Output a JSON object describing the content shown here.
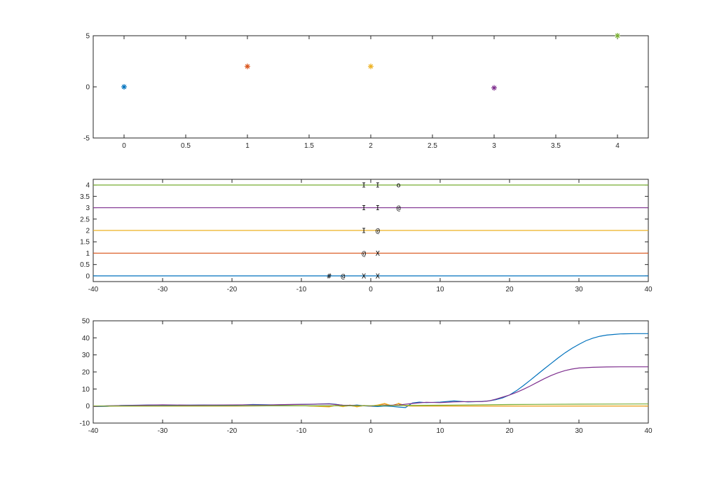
{
  "colors": {
    "blue": "#0072bd",
    "orange": "#d95319",
    "yellow": "#edb120",
    "purple": "#7e2f8e",
    "green": "#77ac30",
    "axis": "#262626"
  },
  "chart_data": [
    {
      "type": "scatter",
      "marker": "*",
      "xlim": [
        -0.25,
        4.25
      ],
      "ylim": [
        -5,
        5
      ],
      "xticks": [
        "0",
        "0.5",
        "1",
        "1.5",
        "2",
        "2.5",
        "3",
        "3.5",
        "4"
      ],
      "yticks": [
        "-5",
        "0",
        "5"
      ],
      "points": [
        {
          "x": 0,
          "y": 0,
          "color": "#0072bd"
        },
        {
          "x": 1,
          "y": 2,
          "color": "#d95319"
        },
        {
          "x": 2,
          "y": 2,
          "color": "#edb120"
        },
        {
          "x": 3,
          "y": -0.1,
          "color": "#7e2f8e"
        },
        {
          "x": 4,
          "y": 5,
          "color": "#77ac30"
        }
      ]
    },
    {
      "type": "line",
      "xlim": [
        -40,
        40
      ],
      "ylim": [
        -0.25,
        4.25
      ],
      "xticks": [
        "-40",
        "-30",
        "-20",
        "-10",
        "0",
        "10",
        "20",
        "30",
        "40"
      ],
      "yticks": [
        "0",
        "0.5",
        "1",
        "1.5",
        "2",
        "2.5",
        "3",
        "3.5",
        "4"
      ],
      "series": [
        {
          "y": 0,
          "color": "#0072bd"
        },
        {
          "y": 1,
          "color": "#d95319"
        },
        {
          "y": 2,
          "color": "#edb120"
        },
        {
          "y": 3,
          "color": "#7e2f8e"
        },
        {
          "y": 4,
          "color": "#77ac30"
        }
      ],
      "annotations": [
        {
          "text": "#",
          "x": -6,
          "y": 0
        },
        {
          "text": "@",
          "x": -4,
          "y": 0
        },
        {
          "text": "X",
          "x": -1,
          "y": 0
        },
        {
          "text": "X",
          "x": 1,
          "y": 0
        },
        {
          "text": "@",
          "x": -1,
          "y": 1
        },
        {
          "text": "X",
          "x": 1,
          "y": 1
        },
        {
          "text": "I",
          "x": -1,
          "y": 2
        },
        {
          "text": "@",
          "x": 1,
          "y": 2
        },
        {
          "text": "I",
          "x": -1,
          "y": 3
        },
        {
          "text": "I",
          "x": 1,
          "y": 3
        },
        {
          "text": "@",
          "x": 4,
          "y": 3
        },
        {
          "text": "I",
          "x": -1,
          "y": 4
        },
        {
          "text": "I",
          "x": 1,
          "y": 4
        },
        {
          "text": "o",
          "x": 4,
          "y": 4
        }
      ]
    },
    {
      "type": "line",
      "xlim": [
        -40,
        40
      ],
      "ylim": [
        -10,
        50
      ],
      "xticks": [
        "-40",
        "-30",
        "-20",
        "-10",
        "0",
        "10",
        "20",
        "30",
        "40"
      ],
      "yticks": [
        "-10",
        "0",
        "10",
        "20",
        "30",
        "40",
        "50"
      ],
      "series": [
        {
          "color": "#0072bd",
          "x": [
            -40,
            -38,
            -36,
            -32,
            -28,
            -24,
            -20,
            -17,
            -14,
            -11,
            -8,
            -6,
            -5,
            -4,
            -3,
            -2,
            -1,
            0,
            1,
            2,
            3,
            4,
            5,
            6,
            7,
            8,
            10,
            12,
            14,
            16,
            17,
            18,
            19,
            20,
            21,
            22,
            23,
            24,
            25,
            26,
            27,
            28,
            29,
            30,
            31,
            32,
            33,
            34,
            35,
            36,
            38,
            40
          ],
          "y": [
            -0.3,
            -0.2,
            0.3,
            0.6,
            0.5,
            0.6,
            0.4,
            0.9,
            0.7,
            0.9,
            1.1,
            1.4,
            1.0,
            0.4,
            0.2,
            0.6,
            0.1,
            -0.1,
            -0.3,
            0.0,
            -0.2,
            -0.6,
            -0.9,
            1.8,
            2.3,
            2.0,
            2.3,
            3.0,
            2.4,
            2.7,
            3.0,
            3.7,
            4.8,
            6.5,
            9.0,
            12.0,
            15.2,
            18.5,
            21.8,
            25.0,
            28.2,
            31.2,
            33.9,
            36.2,
            38.3,
            39.8,
            40.9,
            41.6,
            42.0,
            42.3,
            42.5,
            42.5
          ]
        },
        {
          "color": "#d95319",
          "x": [
            -40,
            -30,
            -20,
            -10,
            -6,
            -5,
            -4,
            -3,
            -2,
            -1,
            0,
            1,
            2,
            3,
            4,
            5,
            6,
            10,
            20,
            30,
            40
          ],
          "y": [
            0,
            0,
            0,
            0.2,
            -0.3,
            0.3,
            -0.2,
            0.2,
            -0.3,
            0.2,
            0,
            0.5,
            1.2,
            0.2,
            1.4,
            0.1,
            0,
            0,
            0,
            0,
            0
          ]
        },
        {
          "color": "#edb120",
          "x": [
            -40,
            -30,
            -20,
            -10,
            -6,
            -5,
            -4,
            -3,
            -2,
            -1,
            0,
            1,
            2,
            3,
            3.5,
            4,
            5,
            6,
            10,
            20,
            30,
            40
          ],
          "y": [
            0,
            0,
            0,
            0.2,
            -0.5,
            0.4,
            -0.4,
            0.6,
            -0.5,
            0.3,
            0,
            0.6,
            1.5,
            0.2,
            0.4,
            1.6,
            0.2,
            0,
            0,
            0,
            0,
            0
          ]
        },
        {
          "color": "#7e2f8e",
          "x": [
            -40,
            -38,
            -34,
            -30,
            -26,
            -22,
            -18,
            -15,
            -12,
            -9,
            -6,
            -4,
            -2,
            0,
            2,
            4,
            6,
            8,
            10,
            12,
            14,
            16,
            17,
            18,
            19,
            20,
            21,
            22,
            23,
            24,
            25,
            26,
            27,
            28,
            29,
            30,
            32,
            34,
            36,
            38,
            40
          ],
          "y": [
            -0.3,
            0.1,
            0.4,
            0.7,
            0.5,
            0.6,
            0.7,
            0.6,
            0.9,
            1.0,
            1.2,
            0.5,
            0.3,
            0,
            0.4,
            0.6,
            1.5,
            2.2,
            2.0,
            2.4,
            2.6,
            2.6,
            3.0,
            4.0,
            5.2,
            6.5,
            8.0,
            9.8,
            11.8,
            13.9,
            16.0,
            17.9,
            19.5,
            20.8,
            21.7,
            22.3,
            22.7,
            22.9,
            23.0,
            23.0,
            23.0
          ]
        },
        {
          "color": "#77ac30",
          "x": [
            -40,
            -20,
            0,
            10,
            20,
            30,
            40
          ],
          "y": [
            0,
            0.1,
            0.2,
            0.5,
            0.9,
            1.1,
            1.2
          ]
        }
      ]
    }
  ]
}
